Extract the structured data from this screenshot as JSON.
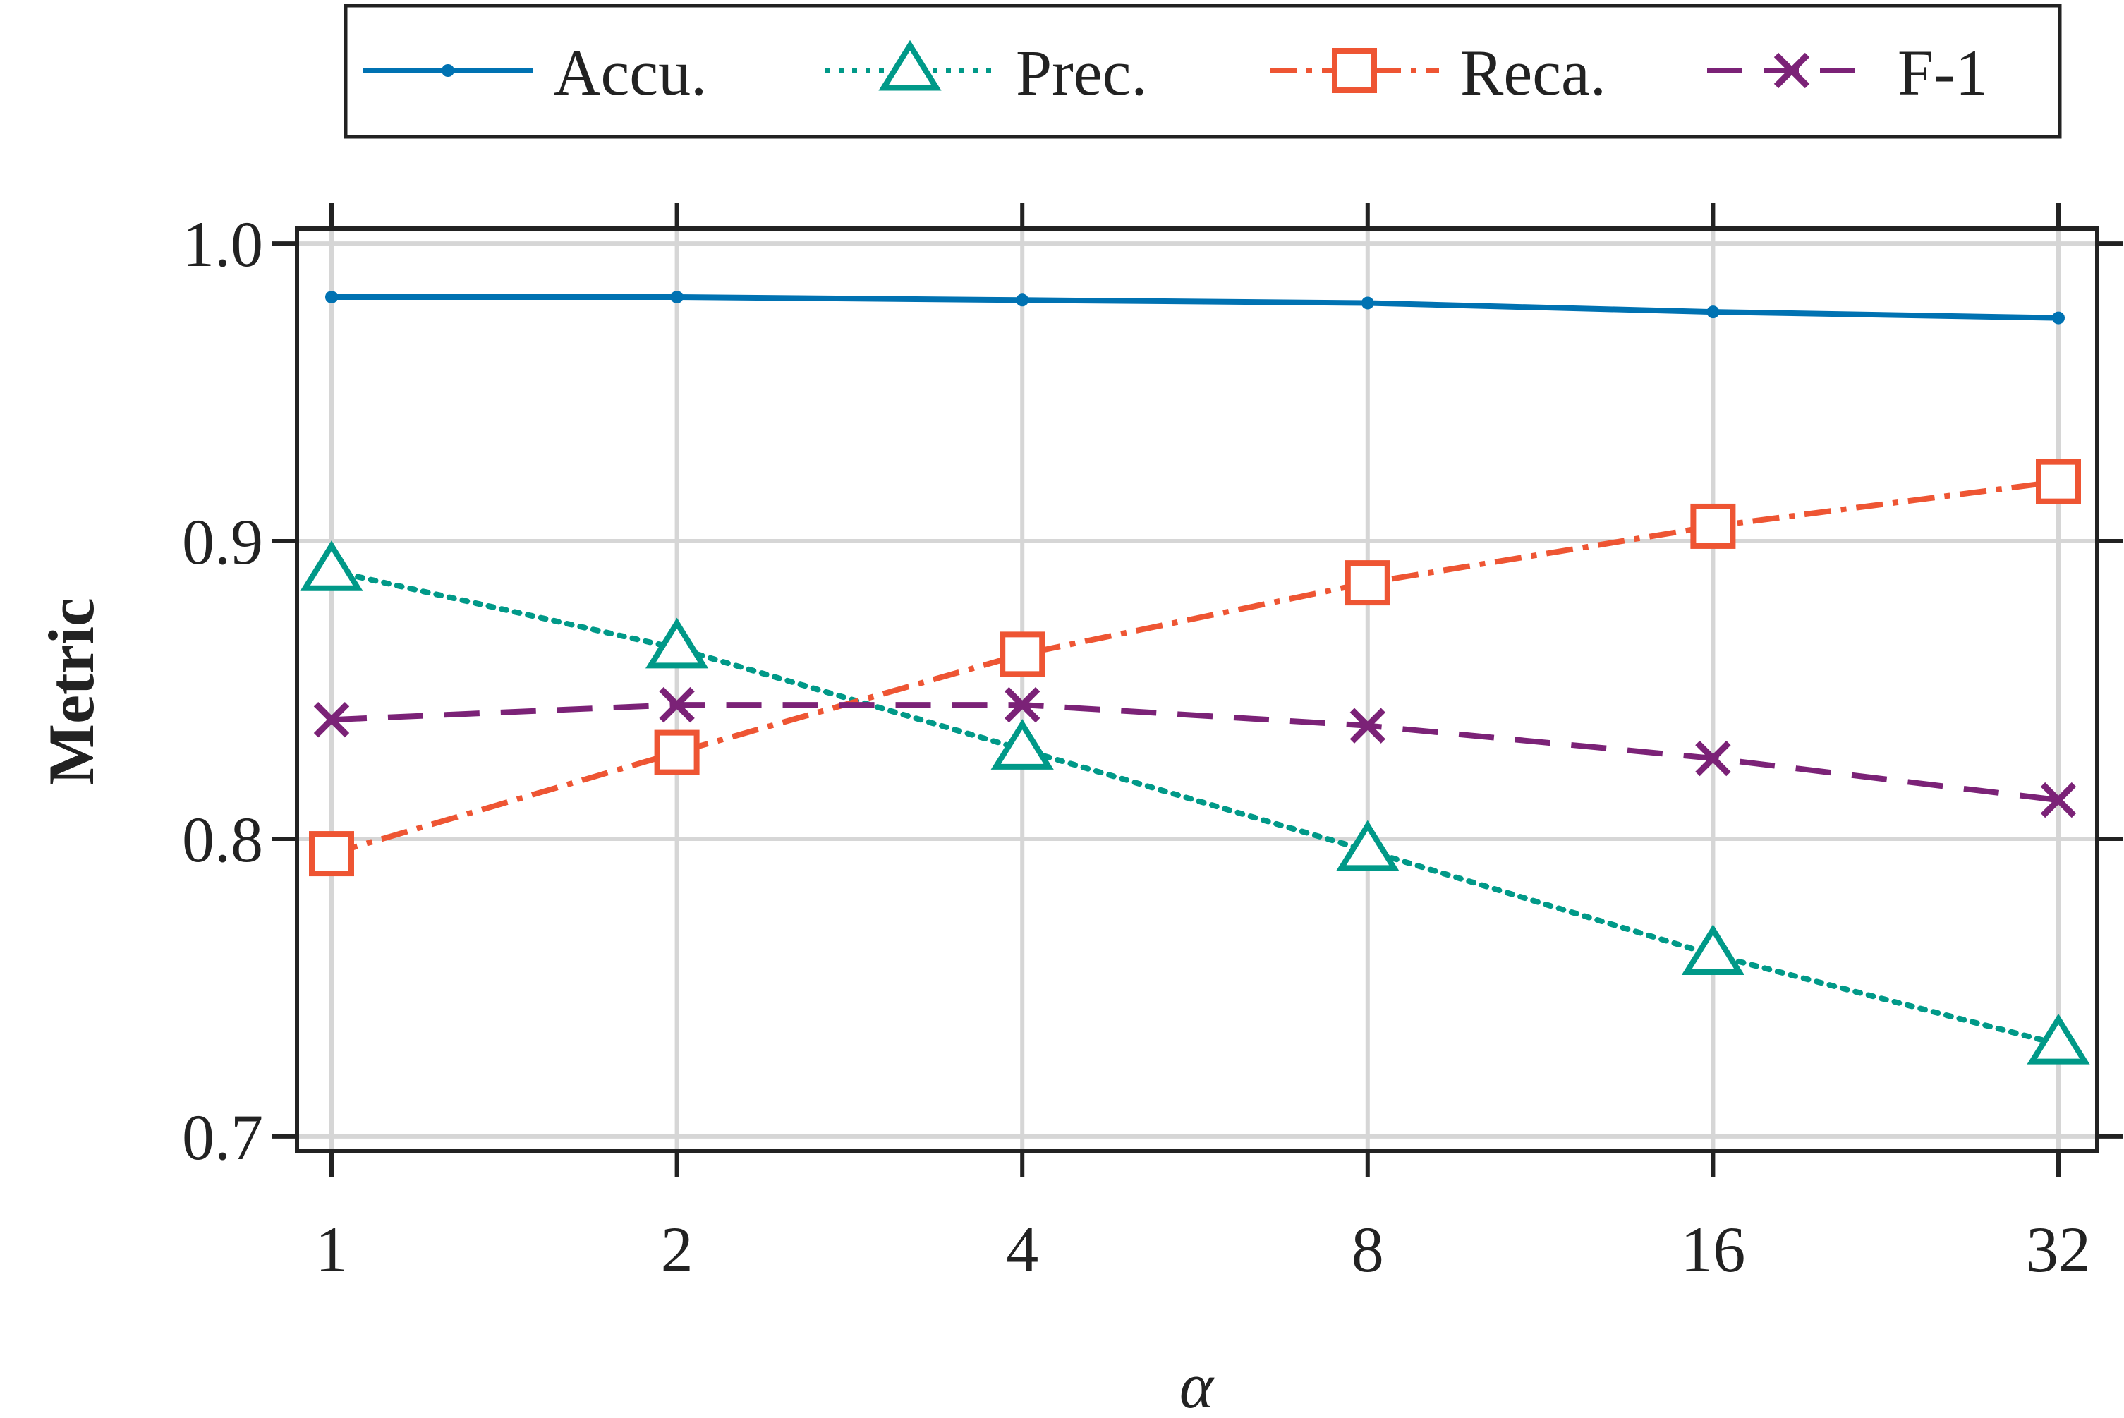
{
  "chart_data": {
    "type": "line",
    "title": "",
    "xlabel": "α",
    "ylabel": "Metric",
    "x": [
      1,
      2,
      4,
      8,
      16,
      32
    ],
    "x_tick_labels": [
      "1",
      "2",
      "4",
      "8",
      "16",
      "32"
    ],
    "x_scale": "log2",
    "ylim": [
      0.695,
      1.005
    ],
    "y_ticks": [
      0.7,
      0.8,
      0.9,
      1.0
    ],
    "y_tick_labels": [
      "0.7",
      "0.8",
      "0.9",
      "1.0"
    ],
    "grid": true,
    "legend_position": "top, outside plot",
    "series": [
      {
        "name": "Accu.",
        "values": [
          0.982,
          0.982,
          0.981,
          0.98,
          0.977,
          0.975
        ],
        "color": "#0072b2",
        "marker": "dot",
        "dash": "solid"
      },
      {
        "name": "Prec.",
        "values": [
          0.89,
          0.864,
          0.83,
          0.796,
          0.761,
          0.731
        ],
        "color": "#009988",
        "marker": "triangle",
        "dash": "dotted"
      },
      {
        "name": "Reca.",
        "values": [
          0.795,
          0.829,
          0.862,
          0.886,
          0.905,
          0.92
        ],
        "color": "#ee5533",
        "marker": "square",
        "dash": "dashdot"
      },
      {
        "name": "F-1",
        "values": [
          0.84,
          0.845,
          0.845,
          0.838,
          0.827,
          0.813
        ],
        "color": "#7b2277",
        "marker": "x",
        "dash": "dashed"
      }
    ]
  }
}
